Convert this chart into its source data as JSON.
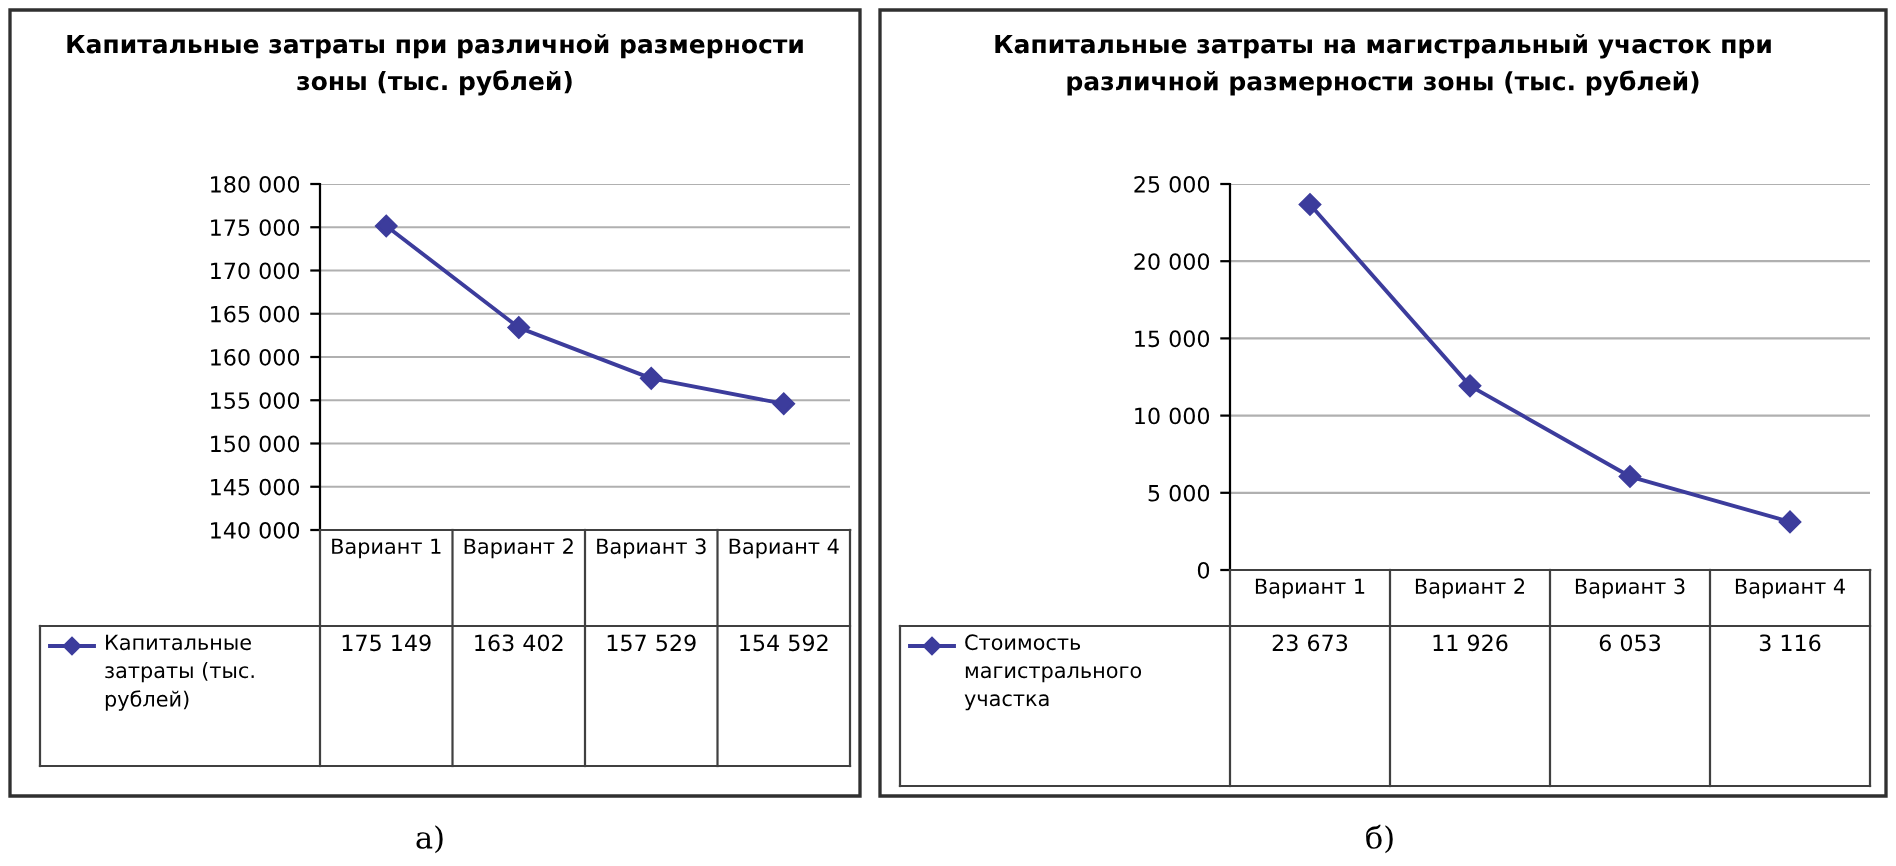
{
  "chart_data": [
    {
      "type": "line",
      "title": "Капитальные затраты при различной размерности зоны (тыс. рублей)",
      "categories": [
        "Вариант 1",
        "Вариант 2",
        "Вариант 3",
        "Вариант 4"
      ],
      "series": [
        {
          "name": "Капитальные затраты (тыс. рублей)",
          "color": "#3c3c9c",
          "values": [
            175149,
            163402,
            157529,
            154592
          ],
          "value_labels": [
            "175 149",
            "163 402",
            "157 529",
            "154 592"
          ]
        }
      ],
      "ylim": [
        140000,
        180000
      ],
      "yticks": [
        {
          "value": 140000,
          "label": "140 000"
        },
        {
          "value": 145000,
          "label": "145 000"
        },
        {
          "value": 150000,
          "label": "150 000"
        },
        {
          "value": 155000,
          "label": "155 000"
        },
        {
          "value": 160000,
          "label": "160 000"
        },
        {
          "value": 165000,
          "label": "165 000"
        },
        {
          "value": 170000,
          "label": "170 000"
        },
        {
          "value": 175000,
          "label": "175 000"
        },
        {
          "value": 180000,
          "label": "180 000"
        }
      ],
      "grid": "y",
      "legend": "bottom",
      "marker": "diamond",
      "line_style": "solid",
      "annotations": [
        "а)"
      ]
    },
    {
      "type": "line",
      "title": "Капитальные затраты на магистральный участок при различной размерности зоны (тыс. рублей)",
      "categories": [
        "Вариант 1",
        "Вариант 2",
        "Вариант 3",
        "Вариант 4"
      ],
      "series": [
        {
          "name": "Стоимость магистрального участка",
          "color": "#3c3c9c",
          "values": [
            23673,
            11926,
            6053,
            3116
          ],
          "value_labels": [
            "23 673",
            "11 926",
            "6 053",
            "3 116"
          ]
        }
      ],
      "ylim": [
        0,
        25000
      ],
      "yticks": [
        0,
        {
          "value": 5000,
          "label": "5 000"
        },
        {
          "value": 10000,
          "label": "10 000"
        },
        {
          "value": 15000,
          "label": "15 000"
        },
        {
          "value": 20000,
          "label": "20 000"
        },
        {
          "value": 25000,
          "label": "25 000"
        }
      ],
      "grid": "y",
      "legend": "bottom",
      "marker": "diamond",
      "line_style": "solid",
      "annotations": [
        "б)"
      ]
    }
  ]
}
